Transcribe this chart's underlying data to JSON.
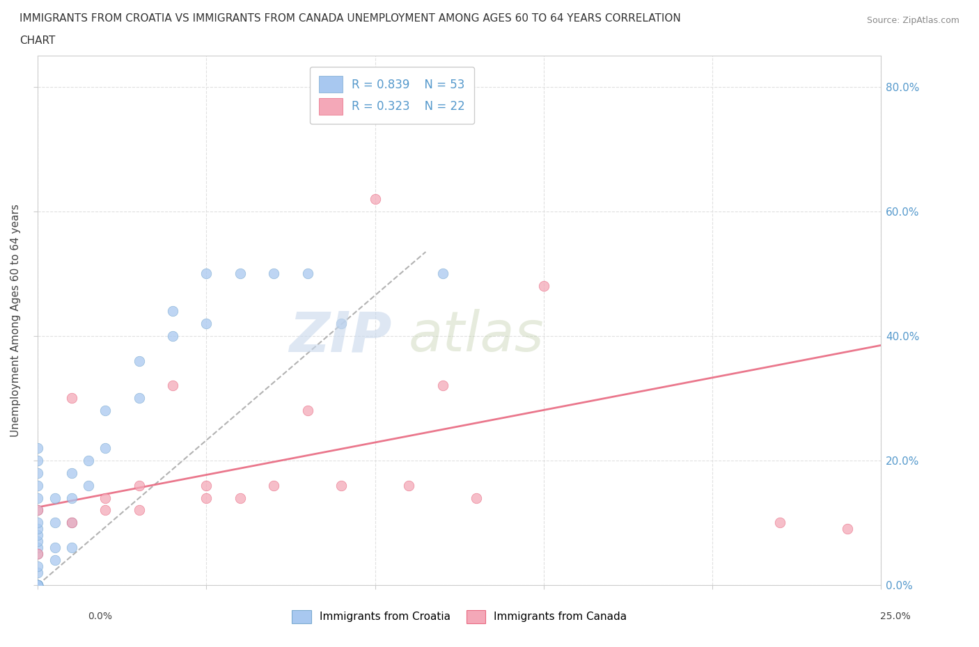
{
  "title": "IMMIGRANTS FROM CROATIA VS IMMIGRANTS FROM CANADA UNEMPLOYMENT AMONG AGES 60 TO 64 YEARS CORRELATION\nCHART",
  "source": "Source: ZipAtlas.com",
  "ylabel": "Unemployment Among Ages 60 to 64 years",
  "xlim": [
    0.0,
    0.25
  ],
  "ylim": [
    0.0,
    0.85
  ],
  "ytick_labels": [
    "0.0%",
    "20.0%",
    "40.0%",
    "60.0%",
    "80.0%"
  ],
  "ytick_values": [
    0.0,
    0.2,
    0.4,
    0.6,
    0.8
  ],
  "color_croatia": "#A8C8F0",
  "color_canada": "#F4A8B8",
  "trendline_croatia_color": "#7AAAD0",
  "trendline_canada_color": "#E86880",
  "label_color_blue": "#5599CC",
  "background_color": "#FFFFFF",
  "grid_color": "#E0E0E0",
  "croatia_x": [
    0.0,
    0.0,
    0.0,
    0.0,
    0.0,
    0.0,
    0.0,
    0.0,
    0.0,
    0.0,
    0.0,
    0.0,
    0.0,
    0.0,
    0.0,
    0.0,
    0.0,
    0.0,
    0.0,
    0.0,
    0.0,
    0.0,
    0.0,
    0.0,
    0.0,
    0.0,
    0.0,
    0.0,
    0.0,
    0.0,
    0.005,
    0.005,
    0.005,
    0.005,
    0.01,
    0.01,
    0.01,
    0.01,
    0.015,
    0.015,
    0.02,
    0.02,
    0.03,
    0.03,
    0.04,
    0.04,
    0.05,
    0.05,
    0.06,
    0.07,
    0.08,
    0.09,
    0.12
  ],
  "croatia_y": [
    0.0,
    0.0,
    0.0,
    0.0,
    0.0,
    0.0,
    0.0,
    0.0,
    0.0,
    0.0,
    0.0,
    0.0,
    0.0,
    0.0,
    0.0,
    0.0,
    0.02,
    0.03,
    0.05,
    0.06,
    0.07,
    0.08,
    0.09,
    0.1,
    0.12,
    0.14,
    0.16,
    0.18,
    0.2,
    0.22,
    0.04,
    0.06,
    0.1,
    0.14,
    0.06,
    0.1,
    0.14,
    0.18,
    0.16,
    0.2,
    0.22,
    0.28,
    0.3,
    0.36,
    0.4,
    0.44,
    0.42,
    0.5,
    0.5,
    0.5,
    0.5,
    0.42,
    0.5
  ],
  "canada_x": [
    0.0,
    0.0,
    0.01,
    0.01,
    0.02,
    0.02,
    0.03,
    0.03,
    0.04,
    0.05,
    0.05,
    0.06,
    0.07,
    0.08,
    0.09,
    0.1,
    0.11,
    0.12,
    0.13,
    0.15,
    0.22,
    0.24
  ],
  "canada_y": [
    0.05,
    0.12,
    0.1,
    0.3,
    0.12,
    0.14,
    0.12,
    0.16,
    0.32,
    0.14,
    0.16,
    0.14,
    0.16,
    0.28,
    0.16,
    0.62,
    0.16,
    0.32,
    0.14,
    0.48,
    0.1,
    0.09
  ],
  "trendline_croatia_x0": 0.0,
  "trendline_croatia_y0": 0.0,
  "trendline_croatia_x1": 0.115,
  "trendline_croatia_y1": 0.535,
  "trendline_canada_x0": 0.0,
  "trendline_canada_y0": 0.125,
  "trendline_canada_x1": 0.25,
  "trendline_canada_y1": 0.385
}
